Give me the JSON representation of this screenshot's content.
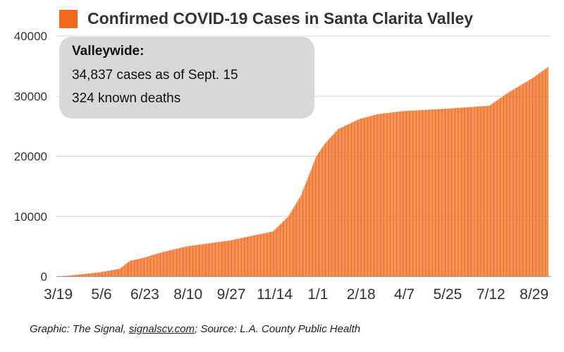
{
  "chart_data": {
    "type": "bar",
    "title": "Confirmed COVID-19 Cases in Santa Clarita Valley",
    "series_name": "",
    "series_color": "#f26a1d",
    "ylim": [
      0,
      40000
    ],
    "y_ticks": [
      0,
      10000,
      20000,
      30000,
      40000
    ],
    "y_tick_labels": [
      "0",
      "10000",
      "20000",
      "30000",
      "40000"
    ],
    "x_tick_labels": [
      "3/19",
      "5/6",
      "6/23",
      "8/10",
      "9/27",
      "11/14",
      "1/1",
      "2/18",
      "4/7",
      "5/25",
      "7/12",
      "8/29"
    ],
    "x_range": [
      "3/19",
      "9/15"
    ],
    "grid": "horizontal",
    "legend": "top-left",
    "cumulative_points": [
      {
        "date": "2020-03-19",
        "cases": 10
      },
      {
        "date": "2020-04-01",
        "cases": 150
      },
      {
        "date": "2020-05-06",
        "cases": 700
      },
      {
        "date": "2020-05-28",
        "cases": 1300
      },
      {
        "date": "2020-06-08",
        "cases": 2600
      },
      {
        "date": "2020-06-23",
        "cases": 3100
      },
      {
        "date": "2020-07-15",
        "cases": 4100
      },
      {
        "date": "2020-08-10",
        "cases": 5000
      },
      {
        "date": "2020-09-27",
        "cases": 6000
      },
      {
        "date": "2020-11-14",
        "cases": 7500
      },
      {
        "date": "2020-12-01",
        "cases": 10000
      },
      {
        "date": "2020-12-15",
        "cases": 13500
      },
      {
        "date": "2021-01-01",
        "cases": 20000
      },
      {
        "date": "2021-01-10",
        "cases": 22000
      },
      {
        "date": "2021-01-25",
        "cases": 24500
      },
      {
        "date": "2021-02-18",
        "cases": 26200
      },
      {
        "date": "2021-03-10",
        "cases": 27000
      },
      {
        "date": "2021-04-07",
        "cases": 27500
      },
      {
        "date": "2021-05-25",
        "cases": 27900
      },
      {
        "date": "2021-07-12",
        "cases": 28400
      },
      {
        "date": "2021-08-01",
        "cases": 30500
      },
      {
        "date": "2021-08-29",
        "cases": 33000
      },
      {
        "date": "2021-09-15",
        "cases": 34837
      }
    ]
  },
  "info_box": {
    "heading": "Valleywide:",
    "line1": "34,837 cases as of Sept. 15",
    "line2": "324 known deaths"
  },
  "footer": {
    "prefix": "Graphic: The Signal, ",
    "link": "signalscv.com",
    "suffix": "; Source: L.A. County Public Health"
  }
}
